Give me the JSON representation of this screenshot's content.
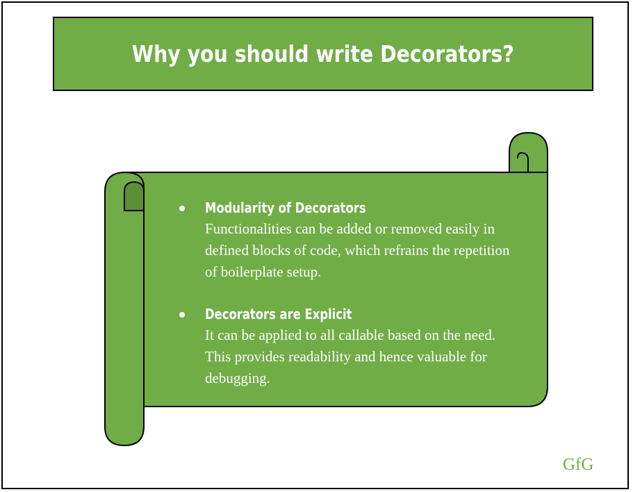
{
  "title": "Why you should write Decorators?",
  "colors": {
    "green": "#70ad47",
    "dark_green": "#5a8f38",
    "text": "#ffffff",
    "outline": "#000000"
  },
  "points": [
    {
      "heading": "Modularity of Decorators",
      "body": "Functionalities can be added or removed easily in defined blocks of code, which refrains the repetition of boilerplate setup."
    },
    {
      "heading": "Decorators are Explicit",
      "body": "It can be applied to all callable based on the need. This provides readability and hence valuable for debugging."
    }
  ],
  "logo": "GfG"
}
